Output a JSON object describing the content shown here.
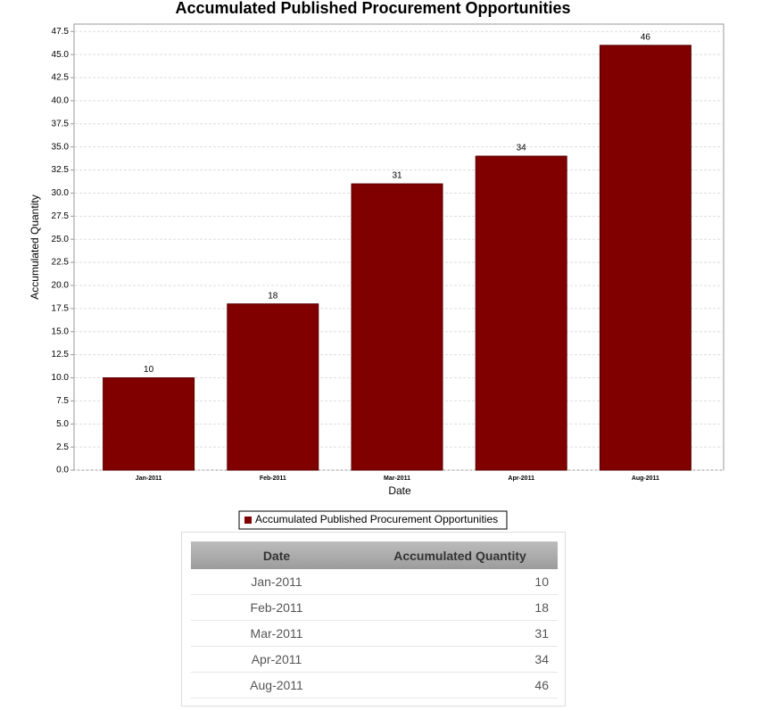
{
  "chart_data": {
    "type": "bar",
    "title": "Accumulated Published Procurement Opportunities",
    "x_label": "Date",
    "y_label": "Accumulated Quantity",
    "categories": [
      "Jan-2011",
      "Feb-2011",
      "Mar-2011",
      "Apr-2011",
      "Aug-2011"
    ],
    "series": [
      {
        "name": "Accumulated Published Procurement Opportunities",
        "color": "#800000",
        "values": [
          10,
          18,
          31,
          34,
          46
        ]
      }
    ],
    "ylim": [
      0,
      48.3
    ],
    "yticks": [
      {
        "value": 0,
        "label": "0.0"
      },
      2.5,
      {
        "value": 5,
        "label": "5.0"
      },
      7.5,
      {
        "value": 10,
        "label": "10.0"
      },
      12.5,
      {
        "value": 15,
        "label": "15.0"
      },
      17.5,
      {
        "value": 20,
        "label": "20.0"
      },
      22.5,
      {
        "value": 25,
        "label": "25.0"
      },
      27.5,
      {
        "value": 30,
        "label": "30.0"
      },
      32.5,
      {
        "value": 35,
        "label": "35.0"
      },
      37.5,
      {
        "value": 40,
        "label": "40.0"
      },
      42.5,
      {
        "value": 45,
        "label": "45.0"
      },
      47.5
    ],
    "grid": true
  },
  "table": {
    "columns": [
      "Date",
      "Accumulated Quantity"
    ],
    "rows": [
      [
        "Jan-2011",
        10
      ],
      [
        "Feb-2011",
        18
      ],
      [
        "Mar-2011",
        31
      ],
      [
        "Apr-2011",
        34
      ],
      [
        "Aug-2011",
        46
      ]
    ]
  }
}
